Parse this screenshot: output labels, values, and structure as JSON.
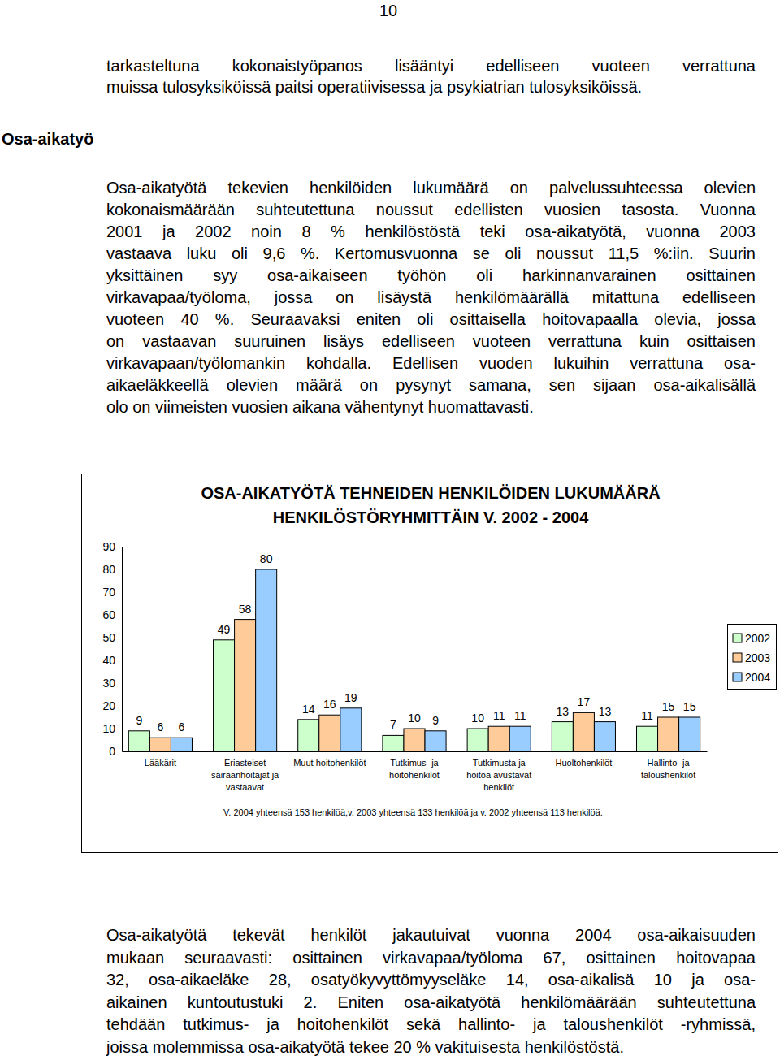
{
  "page_number": "10",
  "intro_lines": [
    "tarkasteltuna kokonaistyöpanos lisääntyi edelliseen vuoteen verrattuna",
    "muissa tulosyksiköissä paitsi operatiivisessa ja psykiatrian tulosyksiköissä."
  ],
  "side_heading": "Osa-aikatyö",
  "paragraph_lines": [
    "Osa-aikatyötä tekevien henkilöiden lukumäärä on palvelussuhteessa olevien",
    "kokonaismäärään suhteutettuna noussut edellisten vuosien tasosta. Vuonna",
    "2001 ja 2002 noin 8 % henkilöstöstä teki osa-aikatyötä, vuonna 2003",
    "vastaava luku oli 9,6 %. Kertomusvuonna se oli noussut 11,5 %:iin. Suurin",
    "yksittäinen syy osa-aikaiseen työhön oli harkinnanvarainen osittainen",
    "virkavapaa/työloma, jossa on lisäystä henkilömäärällä mitattuna edelliseen",
    "vuoteen 40 %. Seuraavaksi eniten oli osittaisella hoitovapaalla olevia, jossa",
    "on vastaavan suuruinen lisäys edelliseen vuoteen verrattuna kuin osittaisen",
    "virkavapaan/työlomankin kohdalla. Edellisen vuoden lukuihin verrattuna osa-",
    "aikaeläkkeellä olevien määrä on pysynyt samana, sen sijaan osa-aikalisällä",
    "olo on viimeisten vuosien aikana vähentynyt huomattavasti."
  ],
  "chart_data": {
    "type": "bar",
    "title": [
      "OSA-AIKATYÖTÄ TEHNEIDEN HENKILÖIDEN LUKUMÄÄRÄ",
      "HENKILÖSTÖRYHMITTÄIN V. 2002 - 2004"
    ],
    "categories": [
      "Lääkärit",
      "Eriasteiset sairaanhoitajat ja vastaavat",
      "Muut hoitohenkilöt",
      "Tutkimus- ja hoitohenkilöt",
      "Tutkimusta ja hoitoa avustavat henkilöt",
      "Huoltohenkilöt",
      "Hallinto- ja taloushenkilöt"
    ],
    "series": [
      {
        "name": "2002",
        "color": "#ccffcc",
        "values": [
          9,
          49,
          14,
          7,
          10,
          13,
          11
        ]
      },
      {
        "name": "2003",
        "color": "#ffcc99",
        "values": [
          6,
          58,
          16,
          10,
          11,
          17,
          15
        ]
      },
      {
        "name": "2004",
        "color": "#99ccff",
        "values": [
          6,
          80,
          19,
          9,
          11,
          13,
          15
        ]
      }
    ],
    "ylim": [
      0,
      90
    ],
    "yticks": [
      0,
      10,
      20,
      30,
      40,
      50,
      60,
      70,
      80,
      90
    ],
    "grid": false,
    "legend": "right",
    "data_labels": true
  },
  "chart_note": "V. 2004 yhteensä 153 henkilöä,v. 2003 yhteensä 133 henkilöä ja v. 2002 yhteensä 113 henkilöä.",
  "closing_lines": [
    "Osa-aikatyötä tekevät henkilöt jakautuivat vuonna 2004 osa-aikaisuuden",
    "mukaan seuraavasti: osittainen virkavapaa/työloma 67, osittainen hoitovapaa",
    "32, osa-aikaeläke 28, osatyökyvyttömyyseläke 14, osa-aikalisä 10 ja osa-",
    "aikainen kuntoutustuki 2. Eniten osa-aikatyötä henkilömäärään suhteutettuna",
    "tehdään tutkimus- ja hoitohenkilöt sekä hallinto- ja taloushenkilöt -ryhmissä,",
    "joissa molemmissa osa-aikatyötä tekee 20 % vakituisesta henkilöstöstä."
  ]
}
